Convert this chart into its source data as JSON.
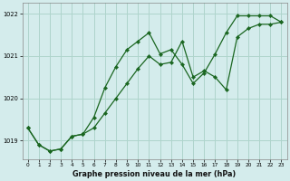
{
  "title": "Graphe pression niveau de la mer (hPa)",
  "bg_color": "#d4ecec",
  "grid_color": "#aed4cc",
  "line_color": "#1a6620",
  "xlim": [
    -0.5,
    23.5
  ],
  "ylim": [
    1018.55,
    1022.25
  ],
  "yticks": [
    1019,
    1020,
    1021,
    1022
  ],
  "xticks": [
    0,
    1,
    2,
    3,
    4,
    5,
    6,
    7,
    8,
    9,
    10,
    11,
    12,
    13,
    14,
    15,
    16,
    17,
    18,
    19,
    20,
    21,
    22,
    23
  ],
  "series1_x": [
    0,
    1,
    2,
    3,
    4,
    5,
    6,
    7,
    8,
    9,
    10,
    11,
    12,
    13,
    14,
    15,
    16,
    17,
    18,
    19,
    20,
    21,
    22,
    23
  ],
  "series1_y": [
    1019.3,
    1018.9,
    1018.75,
    1018.8,
    1019.1,
    1019.15,
    1019.55,
    1020.25,
    1020.75,
    1021.15,
    1021.35,
    1021.55,
    1021.05,
    1021.15,
    1020.8,
    1020.35,
    1020.6,
    1021.05,
    1021.55,
    1021.95,
    1021.95,
    1021.95,
    1021.95,
    1021.8
  ],
  "series2_x": [
    0,
    1,
    2,
    3,
    4,
    5,
    6,
    7,
    8,
    9,
    10,
    11,
    12,
    13,
    14,
    15,
    16,
    17,
    18,
    19,
    20,
    21,
    22,
    23
  ],
  "series2_y": [
    1019.3,
    1018.9,
    1018.75,
    1018.8,
    1019.1,
    1019.15,
    1019.3,
    1019.65,
    1020.0,
    1020.35,
    1020.7,
    1021.0,
    1020.8,
    1020.85,
    1021.35,
    1020.5,
    1020.65,
    1020.5,
    1020.2,
    1021.45,
    1021.65,
    1021.75,
    1021.75,
    1021.8
  ]
}
